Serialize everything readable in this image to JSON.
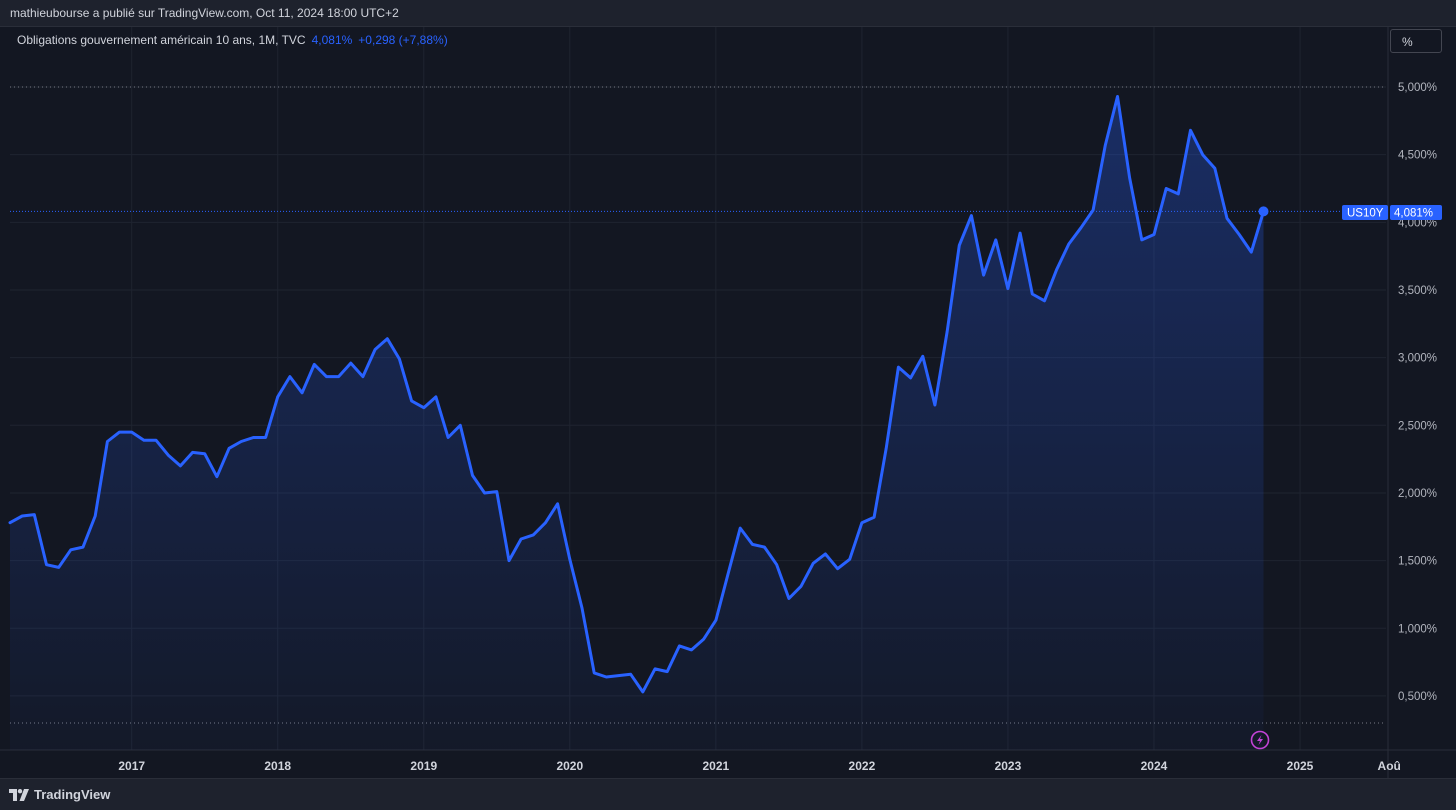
{
  "header": {
    "publisher_line": "mathieubourse a publié sur TradingView.com, Oct 11, 2024 18:00 UTC+2"
  },
  "legend": {
    "symbol_label": "Obligations gouvernement américain 10 ans, 1M, TVC",
    "last_value": "4,081%",
    "change": "+0,298 (+7,88%)"
  },
  "controls": {
    "scale_button": "%"
  },
  "price_tag": {
    "symbol": "US10Y",
    "value": "4,081%"
  },
  "footer": {
    "brand": "TradingView"
  },
  "colors": {
    "background": "#131722",
    "line": "#2962ff",
    "grid": "#1f2430",
    "tag": "#2962ff"
  },
  "chart_data": {
    "type": "area",
    "interval": "1M",
    "x_start": "2016-03",
    "x_step": "1 month",
    "values": [
      1.78,
      1.83,
      1.84,
      1.47,
      1.45,
      1.58,
      1.6,
      1.83,
      2.38,
      2.45,
      2.45,
      2.39,
      2.39,
      2.28,
      2.2,
      2.3,
      2.29,
      2.12,
      2.33,
      2.38,
      2.41,
      2.41,
      2.71,
      2.86,
      2.74,
      2.95,
      2.86,
      2.86,
      2.96,
      2.86,
      3.06,
      3.14,
      2.99,
      2.68,
      2.63,
      2.71,
      2.41,
      2.5,
      2.13,
      2.0,
      2.01,
      1.5,
      1.66,
      1.69,
      1.78,
      1.92,
      1.51,
      1.15,
      0.67,
      0.64,
      0.65,
      0.66,
      0.53,
      0.7,
      0.68,
      0.87,
      0.84,
      0.92,
      1.06,
      1.4,
      1.74,
      1.62,
      1.6,
      1.47,
      1.22,
      1.31,
      1.48,
      1.55,
      1.44,
      1.51,
      1.78,
      1.82,
      2.33,
      2.93,
      2.85,
      3.01,
      2.65,
      3.19,
      3.83,
      4.05,
      3.61,
      3.87,
      3.51,
      3.92,
      3.47,
      3.42,
      3.65,
      3.84,
      3.96,
      4.09,
      4.57,
      4.93,
      4.33,
      3.87,
      3.91,
      4.25,
      4.21,
      4.68,
      4.5,
      4.4,
      4.03,
      3.91,
      3.78,
      4.081
    ],
    "x_ticks": [
      "2017",
      "2018",
      "2019",
      "2020",
      "2021",
      "2022",
      "2023",
      "2024",
      "2025",
      "Aoû"
    ],
    "y_ticks": [
      "0,500%",
      "1,000%",
      "1,500%",
      "2,000%",
      "2,500%",
      "3,000%",
      "3,500%",
      "4,000%",
      "4,500%",
      "5,000%"
    ],
    "y_tick_values": [
      0.5,
      1.0,
      1.5,
      2.0,
      2.5,
      3.0,
      3.5,
      4.0,
      4.5,
      5.0
    ],
    "ylim": [
      0.3,
      5.45
    ],
    "last_value": 4.081,
    "grid": true,
    "annotations": [
      "event-lightning-icon near 2024-10"
    ]
  }
}
